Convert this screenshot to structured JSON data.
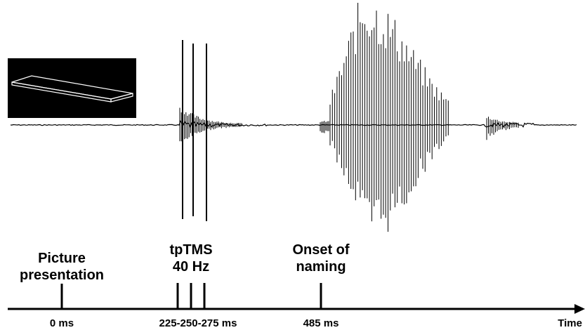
{
  "events": {
    "picture_line1": "Picture",
    "picture_line2": "presentation",
    "tms_line1": "tpTMS",
    "tms_line2": "40 Hz",
    "onset_line1": "Onset of",
    "onset_line2": "naming"
  },
  "axis": {
    "tick_0": "0 ms",
    "tick_tms": "225-250-275 ms",
    "tick_onset": "485 ms",
    "label": "Time"
  },
  "colors": {
    "ink": "#000000",
    "picture_bg": "#000000",
    "picture_outline": "#ffffff"
  },
  "icons": {
    "picture": "plank-outline-icon"
  }
}
